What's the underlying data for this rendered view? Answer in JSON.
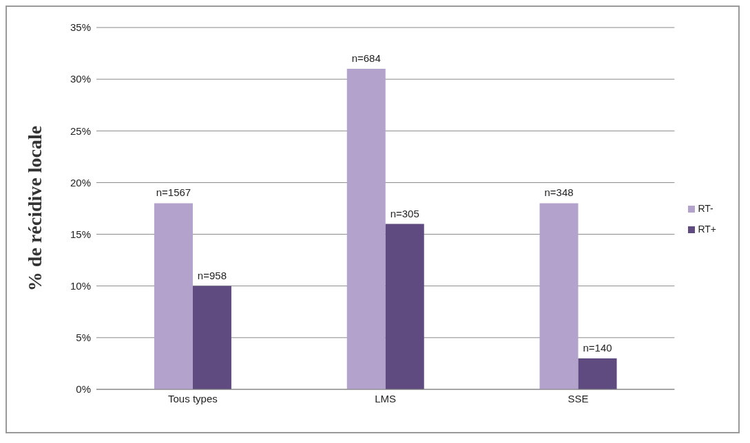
{
  "chart_data": {
    "type": "bar",
    "ylabel": "% de récidive locale",
    "categories": [
      "Tous types",
      "LMS",
      "SSE"
    ],
    "series": [
      {
        "name": "RT-",
        "color": "#b3a2cc",
        "values": [
          18,
          31,
          18
        ]
      },
      {
        "name": "RT+",
        "color": "#5f4b7f",
        "values": [
          10,
          16,
          3
        ]
      }
    ],
    "annotations": [
      {
        "text": "n=1567",
        "x": "Tous types",
        "y": 18
      },
      {
        "text": "n=958",
        "x": "Tous types",
        "y": 10
      },
      {
        "text": "n=684",
        "x": "LMS",
        "y": 31
      },
      {
        "text": "n=305",
        "x": "LMS",
        "y": 16
      },
      {
        "text": "n=348",
        "x": "SSE",
        "y": 18
      },
      {
        "text": "n=140",
        "x": "SSE",
        "y": 3
      }
    ],
    "ylim": [
      0,
      35
    ],
    "yticks": [
      {
        "value": 0,
        "label": "0%"
      },
      {
        "value": 5,
        "label": "5%"
      },
      {
        "value": 10,
        "label": "10%"
      },
      {
        "value": 15,
        "label": "15%"
      },
      {
        "value": 20,
        "label": "20%"
      },
      {
        "value": 25,
        "label": "25%"
      },
      {
        "value": 30,
        "label": "30%"
      },
      {
        "value": 35,
        "label": "35%"
      }
    ],
    "grid": "y",
    "legend": "right"
  }
}
